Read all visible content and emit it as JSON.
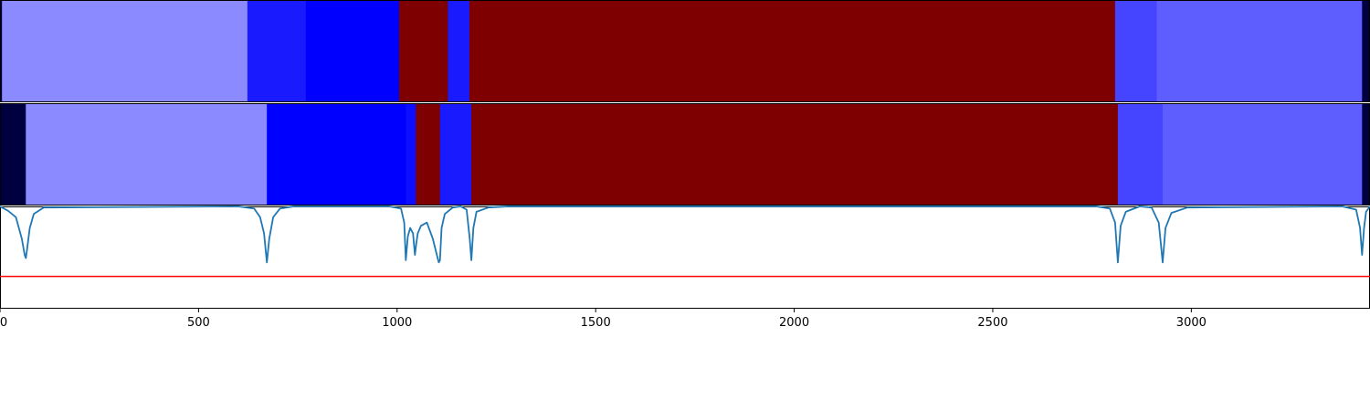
{
  "chart_data": {
    "type": "heatmap",
    "title": "",
    "xlabel": "",
    "ylabel": "",
    "xlim": [
      0,
      3450
    ],
    "grid": false,
    "xticks": [
      0,
      500,
      1000,
      1500,
      2000,
      2500,
      3000
    ],
    "rows": [
      {
        "segments": [
          {
            "start": 0,
            "end": 5,
            "color": "#000040"
          },
          {
            "start": 5,
            "end": 623,
            "color": "#8b8bff"
          },
          {
            "start": 623,
            "end": 770,
            "color": "#1a1aff"
          },
          {
            "start": 770,
            "end": 1005,
            "color": "#0000ff"
          },
          {
            "start": 1005,
            "end": 1128,
            "color": "#7f0000"
          },
          {
            "start": 1128,
            "end": 1182,
            "color": "#1a1aff"
          },
          {
            "start": 1182,
            "end": 2808,
            "color": "#7f0000"
          },
          {
            "start": 2808,
            "end": 2913,
            "color": "#4545ff"
          },
          {
            "start": 2913,
            "end": 3430,
            "color": "#5e5eff"
          },
          {
            "start": 3430,
            "end": 3450,
            "color": "#000040"
          }
        ]
      },
      {
        "segments": [
          {
            "start": 0,
            "end": 65,
            "color": "#000040"
          },
          {
            "start": 65,
            "end": 672,
            "color": "#8b8bff"
          },
          {
            "start": 672,
            "end": 1022,
            "color": "#0000ff"
          },
          {
            "start": 1022,
            "end": 1047,
            "color": "#0d0dff"
          },
          {
            "start": 1047,
            "end": 1108,
            "color": "#7f0000"
          },
          {
            "start": 1108,
            "end": 1187,
            "color": "#1a1aff"
          },
          {
            "start": 1187,
            "end": 2815,
            "color": "#7f0000"
          },
          {
            "start": 2815,
            "end": 2928,
            "color": "#4545ff"
          },
          {
            "start": 2928,
            "end": 3430,
            "color": "#5e5eff"
          },
          {
            "start": 3430,
            "end": 3450,
            "color": "#000040"
          }
        ]
      }
    ],
    "line_panel": {
      "series": [
        {
          "color": "#1f77b4",
          "x": [
            0,
            20,
            40,
            55,
            62,
            65,
            68,
            75,
            85,
            110,
            600,
            640,
            655,
            665,
            672,
            678,
            688,
            705,
            740,
            980,
            1010,
            1018,
            1022,
            1027,
            1033,
            1040,
            1045,
            1048,
            1052,
            1060,
            1075,
            1090,
            1100,
            1105,
            1108,
            1112,
            1120,
            1140,
            1160,
            1175,
            1183,
            1187,
            1192,
            1200,
            1230,
            1280,
            2760,
            2795,
            2808,
            2815,
            2822,
            2835,
            2870,
            2900,
            2918,
            2928,
            2935,
            2950,
            2990,
            3380,
            3415,
            3425,
            3430,
            3435,
            3440,
            3450
          ],
          "y": [
            1.0,
            0.96,
            0.9,
            0.7,
            0.55,
            0.52,
            0.6,
            0.8,
            0.93,
            0.99,
            1.0,
            0.98,
            0.9,
            0.75,
            0.48,
            0.7,
            0.9,
            0.98,
            1.0,
            1.0,
            0.98,
            0.85,
            0.5,
            0.72,
            0.8,
            0.75,
            0.55,
            0.65,
            0.75,
            0.82,
            0.85,
            0.7,
            0.55,
            0.48,
            0.5,
            0.8,
            0.93,
            0.99,
            1.0,
            0.97,
            0.7,
            0.5,
            0.8,
            0.95,
            0.99,
            1.0,
            1.0,
            0.98,
            0.85,
            0.48,
            0.82,
            0.95,
            1.0,
            0.99,
            0.85,
            0.48,
            0.8,
            0.94,
            0.99,
            1.0,
            0.97,
            0.8,
            0.55,
            0.8,
            0.95,
            1.0
          ]
        }
      ],
      "threshold": {
        "value": 0.35,
        "color": "#ff0000"
      },
      "ylim": [
        0.05,
        1.0
      ]
    }
  }
}
